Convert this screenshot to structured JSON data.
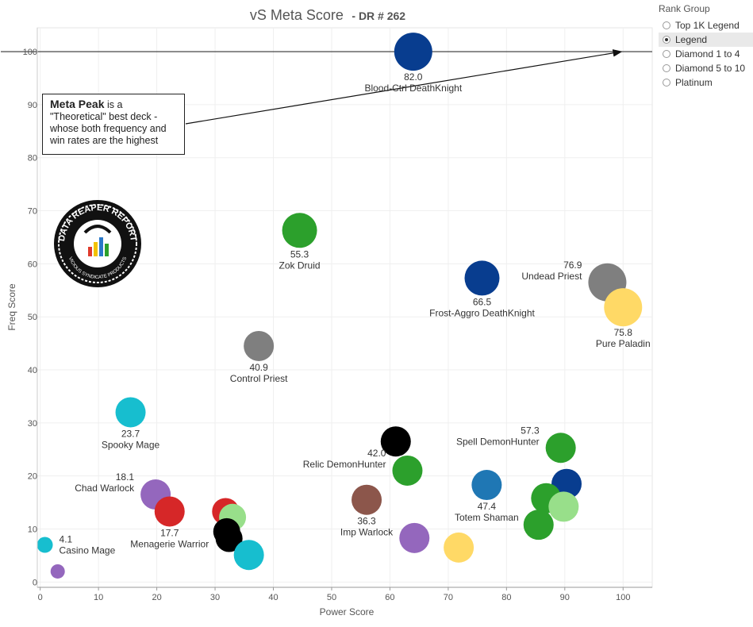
{
  "chart_data": {
    "type": "scatter",
    "title": "vS Meta Score",
    "subtitle": "- DR # 262",
    "xlabel": "Power Score",
    "ylabel": "Freq Score",
    "xlim": [
      -0.5,
      105
    ],
    "ylim": [
      -1,
      104.5
    ],
    "xticks": [
      0,
      10,
      20,
      30,
      40,
      50,
      60,
      70,
      80,
      90,
      100
    ],
    "yticks": [
      0,
      10,
      20,
      30,
      40,
      50,
      60,
      70,
      80,
      90,
      100
    ],
    "grid": true,
    "reference_line_y": 100,
    "points": [
      {
        "x": 64.0,
        "y": 100.0,
        "color": "#083d8f",
        "value": "82.0",
        "name": "Blood-Ctrl DeathKnight",
        "labelpos": "below"
      },
      {
        "x": 44.5,
        "y": 66.3,
        "color": "#2ca02c",
        "value": "55.3",
        "name": "Zok Druid",
        "labelpos": "below"
      },
      {
        "x": 75.8,
        "y": 57.3,
        "color": "#083d8f",
        "value": "66.5",
        "name": "Frost-Aggro DeathKnight",
        "labelpos": "below"
      },
      {
        "x": 97.3,
        "y": 56.5,
        "color": "#7f7f7f",
        "value": "76.9",
        "name": "Undead Priest",
        "labelpos": "left"
      },
      {
        "x": 100.0,
        "y": 51.8,
        "color": "#ffd966",
        "value": "75.8",
        "name": "Pure Paladin",
        "labelpos": "below"
      },
      {
        "x": 37.5,
        "y": 44.5,
        "color": "#7f7f7f",
        "value": "40.9",
        "name": "Control Priest",
        "labelpos": "below"
      },
      {
        "x": 15.5,
        "y": 32.0,
        "color": "#17becf",
        "value": "23.7",
        "name": "Spooky Mage",
        "labelpos": "below"
      },
      {
        "x": 61.0,
        "y": 26.5,
        "color": "#000000",
        "value": "",
        "name": "",
        "labelpos": "none"
      },
      {
        "x": 63.0,
        "y": 21.0,
        "color": "#2ca02c",
        "value": "42.0",
        "name": "Relic DemonHunter",
        "labelpos": "left"
      },
      {
        "x": 89.3,
        "y": 25.3,
        "color": "#2ca02c",
        "value": "57.3",
        "name": "Spell DemonHunter",
        "labelpos": "left"
      },
      {
        "x": 90.3,
        "y": 18.5,
        "color": "#083d8f",
        "value": "",
        "name": "",
        "labelpos": "none"
      },
      {
        "x": 76.6,
        "y": 18.3,
        "color": "#1f77b4",
        "value": "47.4",
        "name": "Totem Shaman",
        "labelpos": "below"
      },
      {
        "x": 56.0,
        "y": 15.5,
        "color": "#8c564b",
        "value": "36.3",
        "name": "Imp Warlock",
        "labelpos": "below"
      },
      {
        "x": 86.8,
        "y": 15.8,
        "color": "#2ca02c",
        "value": "",
        "name": "",
        "labelpos": "none"
      },
      {
        "x": 89.8,
        "y": 14.2,
        "color": "#98df8a",
        "value": "",
        "name": "",
        "labelpos": "none"
      },
      {
        "x": 85.5,
        "y": 10.8,
        "color": "#2ca02c",
        "value": "",
        "name": "",
        "labelpos": "none"
      },
      {
        "x": 19.8,
        "y": 16.5,
        "color": "#9467bd",
        "value": "18.1",
        "name": "Chad Warlock",
        "labelpos": "left"
      },
      {
        "x": 22.2,
        "y": 13.3,
        "color": "#d62728",
        "value": "17.7",
        "name": "Menagerie Warrior",
        "labelpos": "below"
      },
      {
        "x": 31.8,
        "y": 13.3,
        "color": "#d62728",
        "value": "",
        "name": "",
        "labelpos": "none"
      },
      {
        "x": 33.0,
        "y": 12.2,
        "color": "#98df8a",
        "value": "",
        "name": "",
        "labelpos": "none"
      },
      {
        "x": 32.0,
        "y": 9.5,
        "color": "#000000",
        "value": "",
        "name": "",
        "labelpos": "none"
      },
      {
        "x": 32.4,
        "y": 8.2,
        "color": "#000000",
        "value": "",
        "name": "",
        "labelpos": "none"
      },
      {
        "x": 35.8,
        "y": 5.1,
        "color": "#17becf",
        "value": "",
        "name": "",
        "labelpos": "none"
      },
      {
        "x": 64.2,
        "y": 8.3,
        "color": "#9467bd",
        "value": "",
        "name": "",
        "labelpos": "none"
      },
      {
        "x": 71.8,
        "y": 6.5,
        "color": "#ffd966",
        "value": "",
        "name": "",
        "labelpos": "none"
      },
      {
        "x": 0.8,
        "y": 7.0,
        "color": "#17becf",
        "value": "4.1",
        "name": "Casino Mage",
        "labelpos": "right"
      },
      {
        "x": 3.0,
        "y": 2.0,
        "color": "#9467bd",
        "value": "",
        "name": "",
        "labelpos": "none"
      }
    ]
  },
  "legend": {
    "title": "Rank Group",
    "items": [
      "Top 1K Legend",
      "Legend",
      "Diamond 1 to 4",
      "Diamond 5 to 10",
      "Platinum"
    ],
    "selected": "Legend"
  },
  "annotation": {
    "bold": "Meta Peak",
    "text": " is a \"Theoretical\" best deck - whose both frequency and win rates are the highest"
  },
  "logo": {
    "text_top": "DATA REAPER REPORT",
    "text_bottom": "VICIOUS SYNDICATE PRODUCTS"
  }
}
